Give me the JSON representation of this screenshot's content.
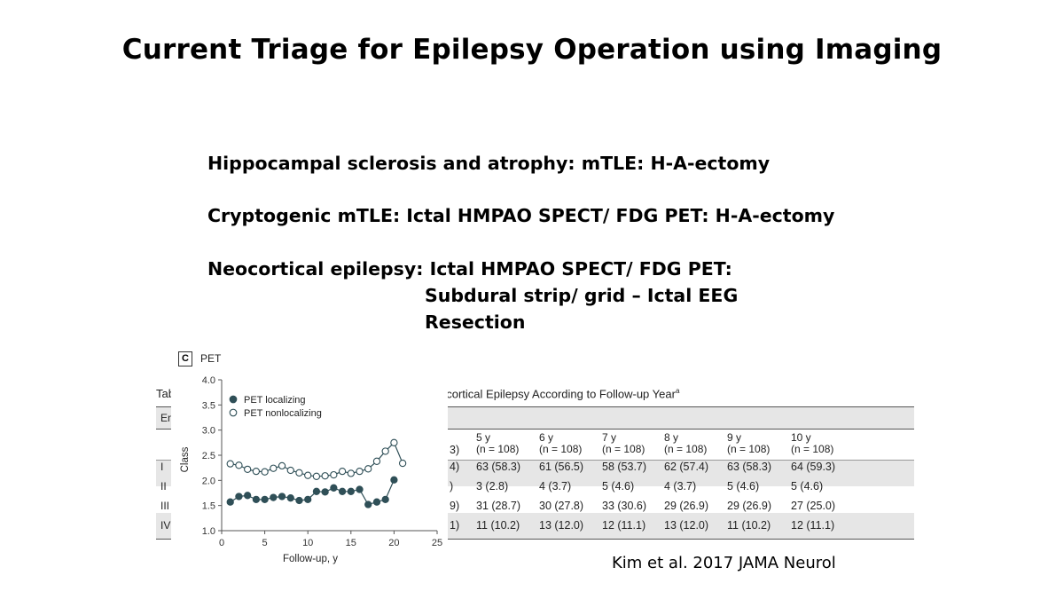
{
  "slide": {
    "title": "Current Triage for Epilepsy Operation using Imaging",
    "bullets": [
      "Hippocampal sclerosis and atrophy: mTLE: H-A-ectomy",
      "Cryptogenic mTLE: Ictal HMPAO SPECT/ FDG PET: H-A-ectomy",
      "Neocortical epilepsy: Ictal HMPAO SPECT/ FDG PET:",
      "Subdural strip/ grid – Ictal EEG",
      "Resection"
    ],
    "citation": "Kim et al. 2017 JAMA Neurol"
  },
  "table": {
    "title_fragment": "Tab",
    "caption_fragment": "ocortical Epilepsy According to Follow-up Year",
    "caption_superscript": "a",
    "col0_fragment": "En",
    "columns": [
      {
        "year": "5 y",
        "n": "(n = 108)"
      },
      {
        "year": "6 y",
        "n": "(n = 108)"
      },
      {
        "year": "7 y",
        "n": "(n = 108)"
      },
      {
        "year": "8 y",
        "n": "(n = 108)"
      },
      {
        "year": "9 y",
        "n": "(n = 108)"
      },
      {
        "year": "10 y",
        "n": "(n = 108)"
      }
    ],
    "hidden_col_fragments": [
      "3)",
      "4)",
      ")",
      "9)",
      "1)"
    ],
    "rows": [
      {
        "label": "I",
        "values": [
          "63 (58.3)",
          "61 (56.5)",
          "58 (53.7)",
          "62 (57.4)",
          "63 (58.3)",
          "64 (59.3)"
        ]
      },
      {
        "label": "II",
        "values": [
          "3 (2.8)",
          "4 (3.7)",
          "5 (4.6)",
          "4 (3.7)",
          "5 (4.6)",
          "5 (4.6)"
        ]
      },
      {
        "label": "III",
        "values": [
          "31 (28.7)",
          "30 (27.8)",
          "33 (30.6)",
          "29 (26.9)",
          "29 (26.9)",
          "27 (25.0)"
        ]
      },
      {
        "label": "IV",
        "values": [
          "11 (10.2)",
          "13 (12.0)",
          "12 (11.1)",
          "13 (12.0)",
          "11 (10.2)",
          "12 (11.1)"
        ]
      }
    ]
  },
  "panel": {
    "badge": "C",
    "label": "PET"
  },
  "chart_data": {
    "type": "line",
    "xlabel": "Follow-up, y",
    "ylabel": "Class",
    "xlim": [
      0,
      25
    ],
    "ylim": [
      1.0,
      4.0
    ],
    "xticks": [
      0,
      5,
      10,
      15,
      20,
      25
    ],
    "yticks": [
      "1.0",
      "1.5",
      "2.0",
      "2.5",
      "3.0",
      "3.5",
      "4.0"
    ],
    "legend_position": "top-left",
    "grid": false,
    "series": [
      {
        "name": "PET localizing",
        "marker": "filled-circle",
        "color": "#2f4f57",
        "x": [
          1,
          2,
          3,
          4,
          5,
          6,
          7,
          8,
          9,
          10,
          11,
          12,
          13,
          14,
          15,
          16,
          17,
          18,
          19,
          20
        ],
        "y": [
          1.57,
          1.68,
          1.7,
          1.62,
          1.62,
          1.66,
          1.68,
          1.65,
          1.6,
          1.62,
          1.78,
          1.77,
          1.85,
          1.78,
          1.78,
          1.82,
          1.52,
          1.57,
          1.62,
          2.01
        ]
      },
      {
        "name": "PET nonlocalizing",
        "marker": "open-circle",
        "color": "#2f4f57",
        "x": [
          1,
          2,
          3,
          4,
          5,
          6,
          7,
          8,
          9,
          10,
          11,
          12,
          13,
          14,
          15,
          16,
          17,
          18,
          19,
          20,
          21
        ],
        "y": [
          2.33,
          2.3,
          2.22,
          2.18,
          2.17,
          2.24,
          2.29,
          2.2,
          2.15,
          2.1,
          2.08,
          2.09,
          2.11,
          2.18,
          2.14,
          2.18,
          2.23,
          2.38,
          2.58,
          2.75,
          2.34
        ]
      }
    ]
  }
}
